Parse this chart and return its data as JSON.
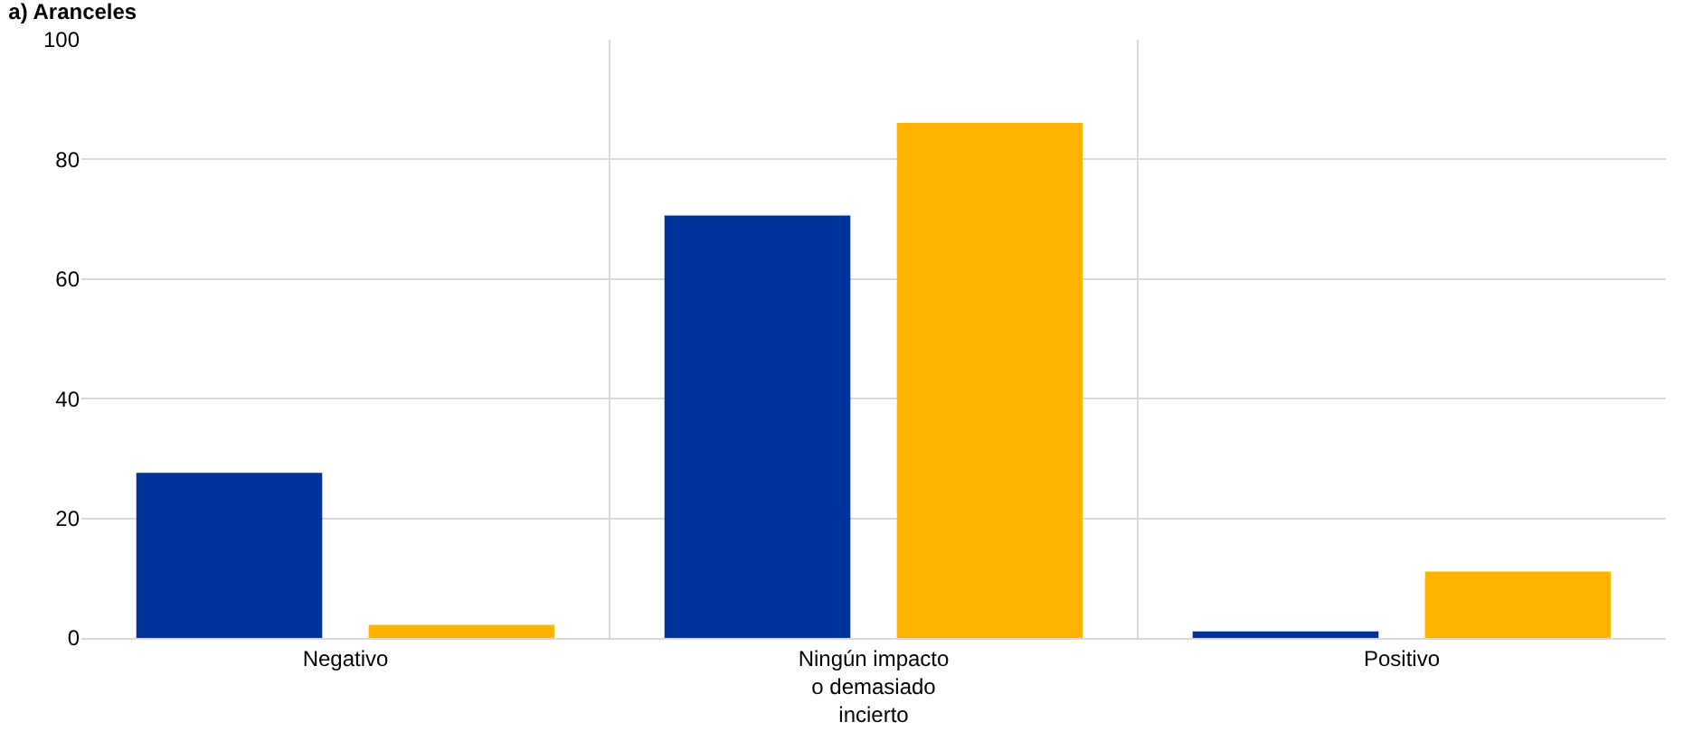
{
  "chart_data": {
    "type": "bar",
    "title": "a) Aranceles",
    "categories": [
      "Negativo",
      "Ningún impacto\no demasiado\nincierto",
      "Positivo"
    ],
    "series": [
      {
        "color": "#003299",
        "values": [
          27.6,
          70.6,
          1.1
        ]
      },
      {
        "color": "#ffb400",
        "values": [
          2.2,
          86.1,
          11.1
        ]
      }
    ],
    "ylim": [
      0,
      100
    ],
    "yticks": [
      0,
      20,
      40,
      60,
      80,
      100
    ],
    "grid": true
  }
}
